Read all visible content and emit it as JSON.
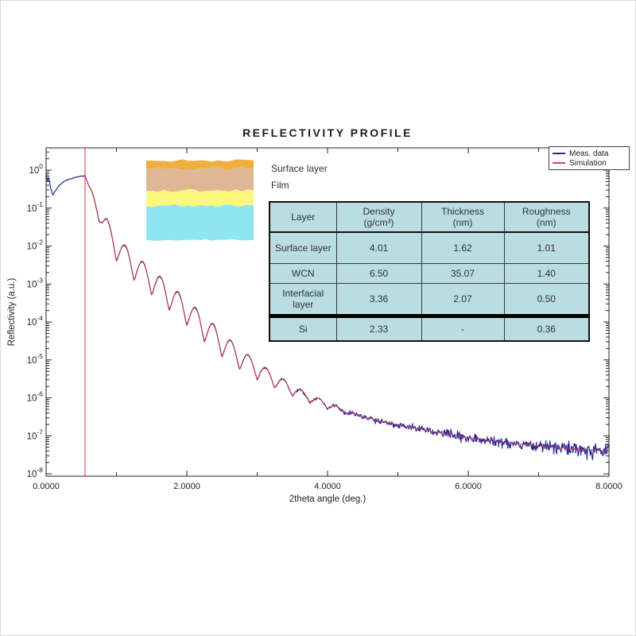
{
  "chart_data": {
    "type": "line",
    "title": "REFLECTIVITY PROFILE",
    "xlabel": "2theta angle (deg.)",
    "ylabel": "Reflectivity (a.u.)",
    "xlim": [
      0,
      8
    ],
    "y_scale": "log10",
    "ylim_log10": [
      -8,
      0.58
    ],
    "grid": false,
    "legend_position": "top-right",
    "x_ticks": [
      {
        "v": 0,
        "label": "0.0000"
      },
      {
        "v": 1,
        "label": ""
      },
      {
        "v": 2,
        "label": "2.0000"
      },
      {
        "v": 3,
        "label": ""
      },
      {
        "v": 4,
        "label": "4.0000"
      },
      {
        "v": 5,
        "label": ""
      },
      {
        "v": 6,
        "label": "6.0000"
      },
      {
        "v": 7,
        "label": ""
      },
      {
        "v": 8,
        "label": "8.0000"
      }
    ],
    "y_tick_exponents": [
      "0",
      "-1",
      "-2",
      "-3",
      "-4",
      "-5",
      "-6",
      "-7",
      "-8"
    ],
    "marker_line": {
      "x_deg": 0.553,
      "color": "#d43c3c"
    },
    "series": [
      {
        "name": "Meas. data",
        "color": "#2b2b9b",
        "style": "noisy",
        "x_start": 0.0,
        "x_end": 8.0
      },
      {
        "name": "Simulation",
        "color": "#cc3a3a",
        "style": "smooth",
        "x_start": 0.553,
        "x_end": 8.0
      }
    ],
    "envelope_log10R": [
      [
        0.0,
        -0.05
      ],
      [
        0.02,
        -0.3
      ],
      [
        0.04,
        -0.18
      ],
      [
        0.06,
        -0.42
      ],
      [
        0.09,
        -0.66
      ],
      [
        0.13,
        -0.55
      ],
      [
        0.18,
        -0.42
      ],
      [
        0.25,
        -0.3
      ],
      [
        0.33,
        -0.24
      ],
      [
        0.42,
        -0.19
      ],
      [
        0.5,
        -0.16
      ],
      [
        0.553,
        -0.155
      ],
      [
        0.6,
        -0.38
      ],
      [
        0.65,
        -0.62
      ],
      [
        0.7,
        -0.9
      ],
      [
        0.75,
        -1.12
      ],
      [
        0.8,
        -1.4
      ],
      [
        0.9,
        -1.75
      ],
      [
        1.0,
        -2.05
      ],
      [
        1.1,
        -2.28
      ],
      [
        1.25,
        -2.56
      ],
      [
        1.5,
        -2.95
      ],
      [
        1.75,
        -3.35
      ],
      [
        2.0,
        -3.75
      ],
      [
        2.25,
        -4.18
      ],
      [
        2.5,
        -4.6
      ],
      [
        2.75,
        -4.97
      ],
      [
        3.0,
        -5.28
      ],
      [
        3.25,
        -5.55
      ],
      [
        3.5,
        -5.8
      ],
      [
        3.75,
        -6.02
      ],
      [
        4.0,
        -6.2
      ],
      [
        4.25,
        -6.36
      ],
      [
        4.5,
        -6.5
      ],
      [
        4.75,
        -6.61
      ],
      [
        5.0,
        -6.71
      ],
      [
        5.25,
        -6.8
      ],
      [
        5.5,
        -6.89
      ],
      [
        5.75,
        -6.97
      ],
      [
        6.0,
        -7.04
      ],
      [
        6.25,
        -7.11
      ],
      [
        6.5,
        -7.17
      ],
      [
        6.75,
        -7.22
      ],
      [
        7.0,
        -7.27
      ],
      [
        7.25,
        -7.31
      ],
      [
        7.5,
        -7.34
      ],
      [
        7.75,
        -7.37
      ],
      [
        8.0,
        -7.4
      ]
    ],
    "kiessig_fringes": {
      "period_deg": 0.25,
      "amplitude_log10": 0.33,
      "fade_in_start_deg": 0.6,
      "fade_in_end_deg": 0.85,
      "hold_until_deg": 2.4,
      "decay_mid_deg": 3.6,
      "decay_mid_amp": 0.12,
      "fade_out_deg": 4.7
    },
    "noise": {
      "start_spike_amp_log10": 0.05,
      "low_angle_amp_log10": 0.012,
      "growth_start_deg": 2.8,
      "growth_per_deg": 0.045,
      "max_amp_log10": 0.25
    }
  },
  "legend": {
    "items": [
      {
        "label": "Meas. data",
        "color": "#2b2b9b"
      },
      {
        "label": "Simulation",
        "color": "#d94b4b"
      }
    ]
  },
  "annotations": {
    "surface_layer": "Surface layer",
    "film": "Film"
  },
  "inset": {
    "layers": [
      {
        "name": "surface-layer",
        "color": "#f0ae3f"
      },
      {
        "name": "film-layer",
        "color": "#dfb795"
      },
      {
        "name": "interfacial-layer",
        "color": "#fbf87d"
      },
      {
        "name": "substrate-layer",
        "color": "#8fe6f2"
      }
    ]
  },
  "table": {
    "headers": [
      {
        "label": "Layer",
        "unit": ""
      },
      {
        "label": "Density",
        "unit": "(g/cm³)"
      },
      {
        "label": "Thickness",
        "unit": "(nm)"
      },
      {
        "label": "Roughness",
        "unit": "(nm)"
      }
    ],
    "rows": [
      {
        "layer": "Surface layer",
        "density": "4.01",
        "thickness": "1.62",
        "roughness": "1.01"
      },
      {
        "layer": "WCN",
        "density": "6.50",
        "thickness": "35.07",
        "roughness": "1.40"
      },
      {
        "layer": "Interfacial layer",
        "density": "3.36",
        "thickness": "2.07",
        "roughness": "0.50"
      },
      {
        "layer": "Si",
        "density": "2.33",
        "thickness": "-",
        "roughness": "0.36"
      }
    ]
  }
}
